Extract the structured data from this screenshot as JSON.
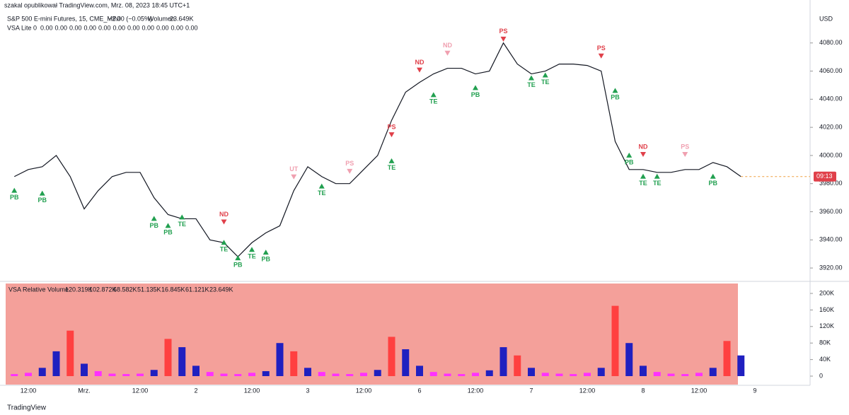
{
  "header": {
    "publisher": "szakal opublikował TradingView.com, Mrz. 08, 2023 18:45 UTC+1",
    "symbol": "S&P 500 E-mini Futures, 15, CME_MINI",
    "change": "−2.00 (−0.05%)",
    "volume_label": "Wolumen",
    "volume_value": "23.649K",
    "indicator": "VSA Lite",
    "indicator_param": "0",
    "indicator_values": [
      "0.00",
      "0.00",
      "0.00",
      "0.00",
      "0.00",
      "0.00",
      "0.00",
      "0.00",
      "0.00",
      "0.00",
      "0.00"
    ],
    "indicator_colors": [
      "#22a050",
      "#22a050",
      "#f0a0b0",
      "#e0404a",
      "#22a050",
      "#22a050",
      "#e0404a",
      "#22a050",
      "#22a050",
      "#f0a0b0",
      "#e0404a"
    ],
    "currency": "USD",
    "price_tag": "09:13"
  },
  "footer": {
    "brand": "TradingView"
  },
  "chart_data": [
    {
      "type": "line",
      "color": "#131722",
      "values": [
        3985,
        3990,
        3992,
        4000,
        3985,
        3962,
        3975,
        3985,
        3988,
        3988,
        3970,
        3958,
        3955,
        3955,
        3940,
        3938,
        3928,
        3938,
        3945,
        3950,
        3975,
        3992,
        3985,
        3980,
        3980,
        3990,
        4000,
        4025,
        4045,
        4052,
        4058,
        4062,
        4062,
        4058,
        4060,
        4080,
        4065,
        4058,
        4060,
        4065,
        4065,
        4064,
        4060,
        4010,
        3990,
        3990,
        3988,
        3988,
        3990,
        3990,
        3995,
        3992,
        3985,
        null
      ],
      "ylim": [
        3912,
        4103
      ],
      "yticks": [
        {
          "value": 3920,
          "label": "3920.00"
        },
        {
          "value": 3940,
          "label": "3940.00"
        },
        {
          "value": 3960,
          "label": "3960.00"
        },
        {
          "value": 3980,
          "label": "3980.00"
        },
        {
          "value": 4000,
          "label": "4000.00"
        },
        {
          "value": 4020,
          "label": "4020.00"
        },
        {
          "value": 4040,
          "label": "4040.00"
        },
        {
          "value": 4060,
          "label": "4060.00"
        },
        {
          "value": 4080,
          "label": "4080.00"
        }
      ],
      "annotations": [
        {
          "text": "PB",
          "x": 0,
          "y": 3972,
          "color": "#22a050"
        },
        {
          "text": "PB",
          "x": 2,
          "y": 3970,
          "color": "#22a050"
        },
        {
          "text": "PB",
          "x": 10,
          "y": 3952,
          "color": "#22a050"
        },
        {
          "text": "PB",
          "x": 11,
          "y": 3947,
          "color": "#22a050"
        },
        {
          "text": "TE",
          "x": 12,
          "y": 3953,
          "color": "#22a050"
        },
        {
          "text": "ND",
          "x": 15,
          "y": 3956,
          "color": "#e0404a"
        },
        {
          "text": "TE",
          "x": 15,
          "y": 3935,
          "color": "#22a050"
        },
        {
          "text": "PB",
          "x": 16,
          "y": 3924,
          "color": "#22a050"
        },
        {
          "text": "TE",
          "x": 17,
          "y": 3930,
          "color": "#22a050"
        },
        {
          "text": "PB",
          "x": 18,
          "y": 3928,
          "color": "#22a050"
        },
        {
          "text": "UT",
          "x": 20,
          "y": 3988,
          "color": "#f0a0b0"
        },
        {
          "text": "TE",
          "x": 22,
          "y": 3975,
          "color": "#22a050"
        },
        {
          "text": "PS",
          "x": 24,
          "y": 3992,
          "color": "#f0a0b0"
        },
        {
          "text": "PS",
          "x": 27,
          "y": 4018,
          "color": "#e0404a"
        },
        {
          "text": "TE",
          "x": 27,
          "y": 3993,
          "color": "#22a050"
        },
        {
          "text": "ND",
          "x": 29,
          "y": 4064,
          "color": "#e0404a"
        },
        {
          "text": "TE",
          "x": 30,
          "y": 4040,
          "color": "#22a050"
        },
        {
          "text": "ND",
          "x": 31,
          "y": 4076,
          "color": "#f0a0b0"
        },
        {
          "text": "PB",
          "x": 33,
          "y": 4045,
          "color": "#22a050"
        },
        {
          "text": "PS",
          "x": 35,
          "y": 4086,
          "color": "#e0404a"
        },
        {
          "text": "TE",
          "x": 37,
          "y": 4052,
          "color": "#22a050"
        },
        {
          "text": "TE",
          "x": 38,
          "y": 4054,
          "color": "#22a050"
        },
        {
          "text": "PS",
          "x": 42,
          "y": 4074,
          "color": "#e0404a"
        },
        {
          "text": "PB",
          "x": 43,
          "y": 4043,
          "color": "#22a050"
        },
        {
          "text": "PB",
          "x": 44,
          "y": 3997,
          "color": "#22a050"
        },
        {
          "text": "ND",
          "x": 45,
          "y": 4004,
          "color": "#e0404a"
        },
        {
          "text": "TE",
          "x": 45,
          "y": 3982,
          "color": "#22a050"
        },
        {
          "text": "TE",
          "x": 46,
          "y": 3982,
          "color": "#22a050"
        },
        {
          "text": "PS",
          "x": 48,
          "y": 4004,
          "color": "#f0a0b0"
        },
        {
          "text": "PB",
          "x": 50,
          "y": 3982,
          "color": "#22a050"
        }
      ]
    },
    {
      "type": "bar",
      "title": "VSA Relative Volume",
      "background": "#f4a09a",
      "legend_values": [
        "120.319K",
        "102.872K",
        "68.582K",
        "51.135K",
        "16.845K",
        "61.121K",
        "23.649K"
      ],
      "legend_colors": [
        "#d8c8f0",
        "#d8c8f0",
        "#ffffff",
        "#d8c8f0",
        "#d8c8f0",
        "#ffffff",
        "#ff30ff"
      ],
      "categories": [
        null,
        "12:00",
        null,
        null,
        null,
        "Mrz.",
        null,
        null,
        null,
        "12:00",
        null,
        null,
        null,
        "2",
        null,
        null,
        null,
        "12:00",
        null,
        null,
        null,
        "3",
        null,
        null,
        null,
        "12:00",
        null,
        null,
        null,
        "6",
        null,
        null,
        null,
        "12:00",
        null,
        null,
        null,
        "7",
        null,
        null,
        null,
        "12:00",
        null,
        null,
        null,
        "8",
        null,
        null,
        null,
        "12:00",
        null,
        null,
        null,
        "9"
      ],
      "values": [
        5000,
        8000,
        20000,
        60000,
        110000,
        30000,
        12000,
        6000,
        5000,
        6000,
        15000,
        90000,
        70000,
        25000,
        10000,
        6000,
        5000,
        8000,
        12000,
        80000,
        60000,
        20000,
        10000,
        6000,
        5000,
        8000,
        15000,
        95000,
        65000,
        25000,
        10000,
        6000,
        5000,
        8000,
        14000,
        70000,
        50000,
        20000,
        8000,
        6000,
        5000,
        8000,
        20000,
        170000,
        80000,
        25000,
        10000,
        6000,
        5000,
        8000,
        20000,
        85000,
        50000,
        null
      ],
      "colors": [
        "#ff30ff",
        "#ff30ff",
        "#2020c0",
        "#2020c0",
        "#ff4040",
        "#2020c0",
        "#ff30ff",
        "#ff30ff",
        "#ff30ff",
        "#ff30ff",
        "#2020c0",
        "#ff4040",
        "#2020c0",
        "#2020c0",
        "#ff30ff",
        "#ff30ff",
        "#ff30ff",
        "#ff30ff",
        "#2020c0",
        "#2020c0",
        "#ff4040",
        "#2020c0",
        "#ff30ff",
        "#ff30ff",
        "#ff30ff",
        "#ff30ff",
        "#2020c0",
        "#ff4040",
        "#2020c0",
        "#2020c0",
        "#ff30ff",
        "#ff30ff",
        "#ff30ff",
        "#ff30ff",
        "#2020c0",
        "#2020c0",
        "#ff4040",
        "#2020c0",
        "#ff30ff",
        "#ff30ff",
        "#ff30ff",
        "#ff30ff",
        "#2020c0",
        "#ff4040",
        "#2020c0",
        "#2020c0",
        "#ff30ff",
        "#ff30ff",
        "#ff30ff",
        "#ff30ff",
        "#2020c0",
        "#ff4040",
        "#2020c0",
        "#ff30ff"
      ],
      "ylim": [
        0,
        224000
      ],
      "yticks": [
        0,
        {
          "value": 40000,
          "label": "40K"
        },
        {
          "value": 80000,
          "label": "80K"
        },
        {
          "value": 120000,
          "label": "120K"
        },
        {
          "value": 160000,
          "label": "160K"
        },
        {
          "value": 200000,
          "label": "200K"
        }
      ]
    }
  ]
}
